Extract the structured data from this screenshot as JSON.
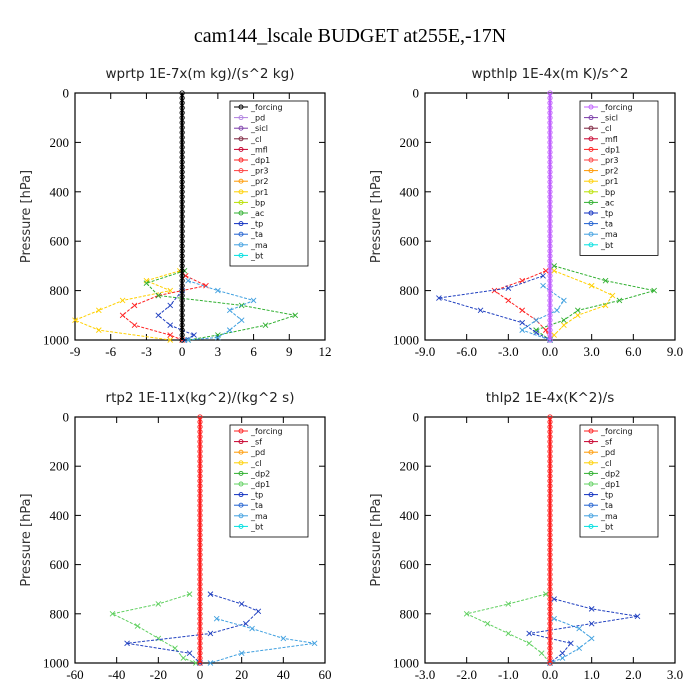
{
  "title": "cam144_lscale  BUDGET at255E,-17N",
  "chart_data": [
    {
      "type": "line",
      "title": "wprtp  1E-7x(m kg)/(s^2 kg)",
      "ylabel": "Pressure [hPa]",
      "xlim": [
        -9,
        12
      ],
      "ylim": [
        1000,
        0
      ],
      "xticks": [
        "-9",
        "-6",
        "-3",
        "0",
        "3",
        "6",
        "9",
        "12"
      ],
      "xtick_values": [
        -9,
        -6,
        -3,
        0,
        3,
        6,
        9,
        12
      ],
      "yticks": [
        "0",
        "200",
        "400",
        "600",
        "800",
        "1000"
      ],
      "ytick_values": [
        0,
        200,
        400,
        600,
        800,
        1000
      ],
      "legend": [
        "_forcing",
        "_pd",
        "_sicl",
        "_cl",
        "_mfl",
        "_dp1",
        "_pr3",
        "_pr2",
        "_pr1",
        "_bp",
        "_ac",
        "_tp",
        "_ta",
        "_ma",
        "_bt"
      ],
      "legend_colors": [
        "#000000",
        "#b080e0",
        "#7a3aa8",
        "#7a1f3a",
        "#c8002e",
        "#ff2020",
        "#ff4040",
        "#ff9900",
        "#ffd000",
        "#b8e000",
        "#30b030",
        "#1030c0",
        "#2060d0",
        "#40a0e0",
        "#00e0e0"
      ],
      "series": [
        {
          "name": "_bp",
          "color": "#ffd000",
          "y": [
            720,
            760,
            800,
            840,
            880,
            920,
            960,
            1000
          ],
          "x": [
            -0.2,
            -3,
            -1,
            -5,
            -7,
            -9,
            -7,
            -1
          ]
        },
        {
          "name": "_ac",
          "color": "#ff2020",
          "y": [
            740,
            780,
            820,
            860,
            900,
            940,
            980,
            1000
          ],
          "x": [
            0.3,
            2,
            -2,
            -4,
            -5,
            -4,
            -1,
            0
          ]
        },
        {
          "name": "_tp",
          "color": "#30b030",
          "y": [
            720,
            770,
            820,
            860,
            900,
            940,
            980,
            1000
          ],
          "x": [
            0.2,
            -3,
            -2,
            5,
            9.5,
            7,
            3,
            0.5
          ]
        },
        {
          "name": "_ta",
          "color": "#2040c0",
          "y": [
            800,
            860,
            900,
            940,
            980,
            1000
          ],
          "x": [
            0,
            -1,
            -2,
            -1,
            1,
            0.2
          ]
        },
        {
          "name": "_ma",
          "color": "#40a0e0",
          "y": [
            760,
            800,
            840,
            880,
            920,
            960,
            990,
            1000
          ],
          "x": [
            0.5,
            3,
            6,
            4,
            5,
            4,
            3,
            0.5
          ]
        }
      ]
    },
    {
      "type": "line",
      "title": "wpthlp  1E-4x(m K)/s^2",
      "ylabel": "Pressure [hPa]",
      "xlim": [
        -9,
        9
      ],
      "ylim": [
        1000,
        0
      ],
      "xticks": [
        "-9.0",
        "-6.0",
        "-3.0",
        "0.0",
        "3.0",
        "6.0",
        "9.0"
      ],
      "xtick_values": [
        -9,
        -6,
        -3,
        0,
        3,
        6,
        9
      ],
      "yticks": [
        "0",
        "200",
        "400",
        "600",
        "800",
        "1000"
      ],
      "ytick_values": [
        0,
        200,
        400,
        600,
        800,
        1000
      ],
      "legend": [
        "_forcing",
        "_sicl",
        "_cl",
        "_mfl",
        "_dp1",
        "_pr3",
        "_pr2",
        "_pr1",
        "_bp",
        "_ac",
        "_tp",
        "_ta",
        "_ma",
        "_bt"
      ],
      "legend_colors": [
        "#c060ff",
        "#7a3aa8",
        "#7a1f3a",
        "#c8002e",
        "#ff2020",
        "#ff4040",
        "#ff9900",
        "#ffd000",
        "#b8e000",
        "#30b030",
        "#1030c0",
        "#2060d0",
        "#40a0e0",
        "#00e0e0"
      ],
      "series": [
        {
          "name": "_bp",
          "color": "#ffd000",
          "y": [
            720,
            780,
            820,
            860,
            900,
            940,
            980,
            1000
          ],
          "x": [
            0.3,
            3,
            4.5,
            4,
            2,
            1,
            0.3,
            0
          ]
        },
        {
          "name": "_ac",
          "color": "#ff2020",
          "y": [
            720,
            760,
            800,
            840,
            880,
            920,
            960,
            1000
          ],
          "x": [
            -0.3,
            -2,
            -4,
            -3,
            -2,
            -1,
            -0.3,
            0
          ]
        },
        {
          "name": "_tp",
          "color": "#30b030",
          "y": [
            700,
            760,
            800,
            840,
            880,
            920,
            960,
            1000
          ],
          "x": [
            0.3,
            4,
            7.5,
            5,
            2,
            1,
            -1,
            0
          ]
        },
        {
          "name": "_ta",
          "color": "#2040c0",
          "y": [
            740,
            790,
            830,
            880,
            930,
            970,
            1000
          ],
          "x": [
            -0.5,
            -3,
            -8,
            -5,
            -2,
            -1,
            0
          ]
        },
        {
          "name": "_ma",
          "color": "#40a0e0",
          "y": [
            780,
            840,
            880,
            920,
            960,
            1000
          ],
          "x": [
            -0.5,
            1,
            0.5,
            -1,
            -2,
            0
          ]
        }
      ]
    },
    {
      "type": "line",
      "title": "rtp2  1E-11x(kg^2)/(kg^2 s)",
      "ylabel": "Pressure [hPa]",
      "xlim": [
        -60,
        60
      ],
      "ylim": [
        1000,
        0
      ],
      "xticks": [
        "-60",
        "-40",
        "-20",
        "0",
        "20",
        "40",
        "60"
      ],
      "xtick_values": [
        -60,
        -40,
        -20,
        0,
        20,
        40,
        60
      ],
      "yticks": [
        "0",
        "200",
        "400",
        "600",
        "800",
        "1000"
      ],
      "ytick_values": [
        0,
        200,
        400,
        600,
        800,
        1000
      ],
      "legend": [
        "_forcing",
        "_sf",
        "_pd",
        "_cl",
        "_dp2",
        "_dp1",
        "_tp",
        "_ta",
        "_ma",
        "_bt"
      ],
      "legend_colors": [
        "#ff2020",
        "#c8002e",
        "#ff9900",
        "#ffd000",
        "#30b030",
        "#60d060",
        "#1030c0",
        "#2060d0",
        "#40a0e0",
        "#00e0e0"
      ],
      "series": [
        {
          "name": "_dp1",
          "color": "#60d060",
          "y": [
            720,
            760,
            800,
            850,
            900,
            940,
            980,
            1000
          ],
          "x": [
            -5,
            -20,
            -42,
            -30,
            -20,
            -12,
            -8,
            -2
          ]
        },
        {
          "name": "_tp",
          "color": "#2040c0",
          "y": [
            720,
            760,
            790,
            840,
            880,
            920,
            960,
            1000
          ],
          "x": [
            5,
            20,
            28,
            22,
            5,
            -35,
            -5,
            0
          ]
        },
        {
          "name": "_ma",
          "color": "#40a0e0",
          "y": [
            820,
            860,
            900,
            920,
            960,
            1000
          ],
          "x": [
            8,
            25,
            40,
            55,
            20,
            5
          ]
        }
      ]
    },
    {
      "type": "line",
      "title": "thlp2  1E-4x(K^2)/s",
      "ylabel": "Pressure [hPa]",
      "xlim": [
        -3,
        3
      ],
      "ylim": [
        1000,
        0
      ],
      "xticks": [
        "-3.0",
        "-2.0",
        "-1.0",
        "0.0",
        "1.0",
        "2.0",
        "3.0"
      ],
      "xtick_values": [
        -3,
        -2,
        -1,
        0,
        1,
        2,
        3
      ],
      "yticks": [
        "0",
        "200",
        "400",
        "600",
        "800",
        "1000"
      ],
      "ytick_values": [
        0,
        200,
        400,
        600,
        800,
        1000
      ],
      "legend": [
        "_forcing",
        "_sf",
        "_pd",
        "_cl",
        "_dp2",
        "_dp1",
        "_tp",
        "_ta",
        "_ma",
        "_bt"
      ],
      "legend_colors": [
        "#ff2020",
        "#c8002e",
        "#ff9900",
        "#ffd000",
        "#30b030",
        "#60d060",
        "#1030c0",
        "#2060d0",
        "#40a0e0",
        "#00e0e0"
      ],
      "series": [
        {
          "name": "_dp1",
          "color": "#60d060",
          "y": [
            720,
            760,
            800,
            840,
            880,
            920,
            960,
            1000
          ],
          "x": [
            -0.1,
            -1,
            -2,
            -1.5,
            -1,
            -0.5,
            -0.2,
            0
          ]
        },
        {
          "name": "_tp",
          "color": "#2040c0",
          "y": [
            740,
            780,
            810,
            840,
            880,
            920,
            960,
            1000
          ],
          "x": [
            0.1,
            1,
            2.1,
            1,
            -0.5,
            0.5,
            0.3,
            0
          ]
        },
        {
          "name": "_ma",
          "color": "#40a0e0",
          "y": [
            820,
            860,
            900,
            940,
            980,
            1000
          ],
          "x": [
            0.1,
            0.7,
            1,
            0.7,
            0.3,
            0
          ]
        }
      ]
    }
  ]
}
